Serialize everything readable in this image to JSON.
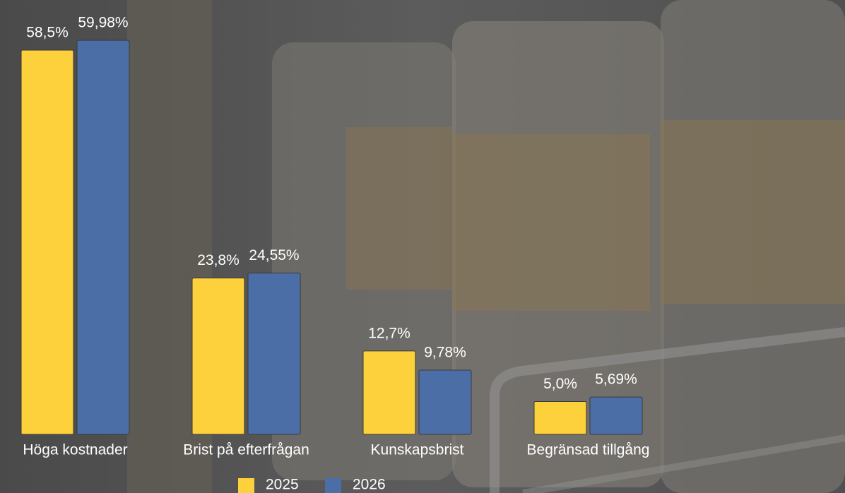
{
  "chart_data": {
    "type": "bar",
    "categories": [
      "Höga kostnader",
      "Brist på efterfrågan",
      "Kunskapsbrist",
      "Begränsad tillgång"
    ],
    "series": [
      {
        "name": "2025",
        "color": "#fdd13b",
        "values": [
          58.5,
          23.8,
          12.7,
          5.0
        ],
        "value_labels": [
          "58,5%",
          "23,8%",
          "12,7%",
          "5,0%"
        ]
      },
      {
        "name": "2026",
        "color": "#4b6ea6",
        "values": [
          59.98,
          24.55,
          9.78,
          5.69
        ],
        "value_labels": [
          "59,98%",
          "24,55%",
          "9,78%",
          "5,69%"
        ]
      }
    ],
    "legend": "bottom"
  }
}
